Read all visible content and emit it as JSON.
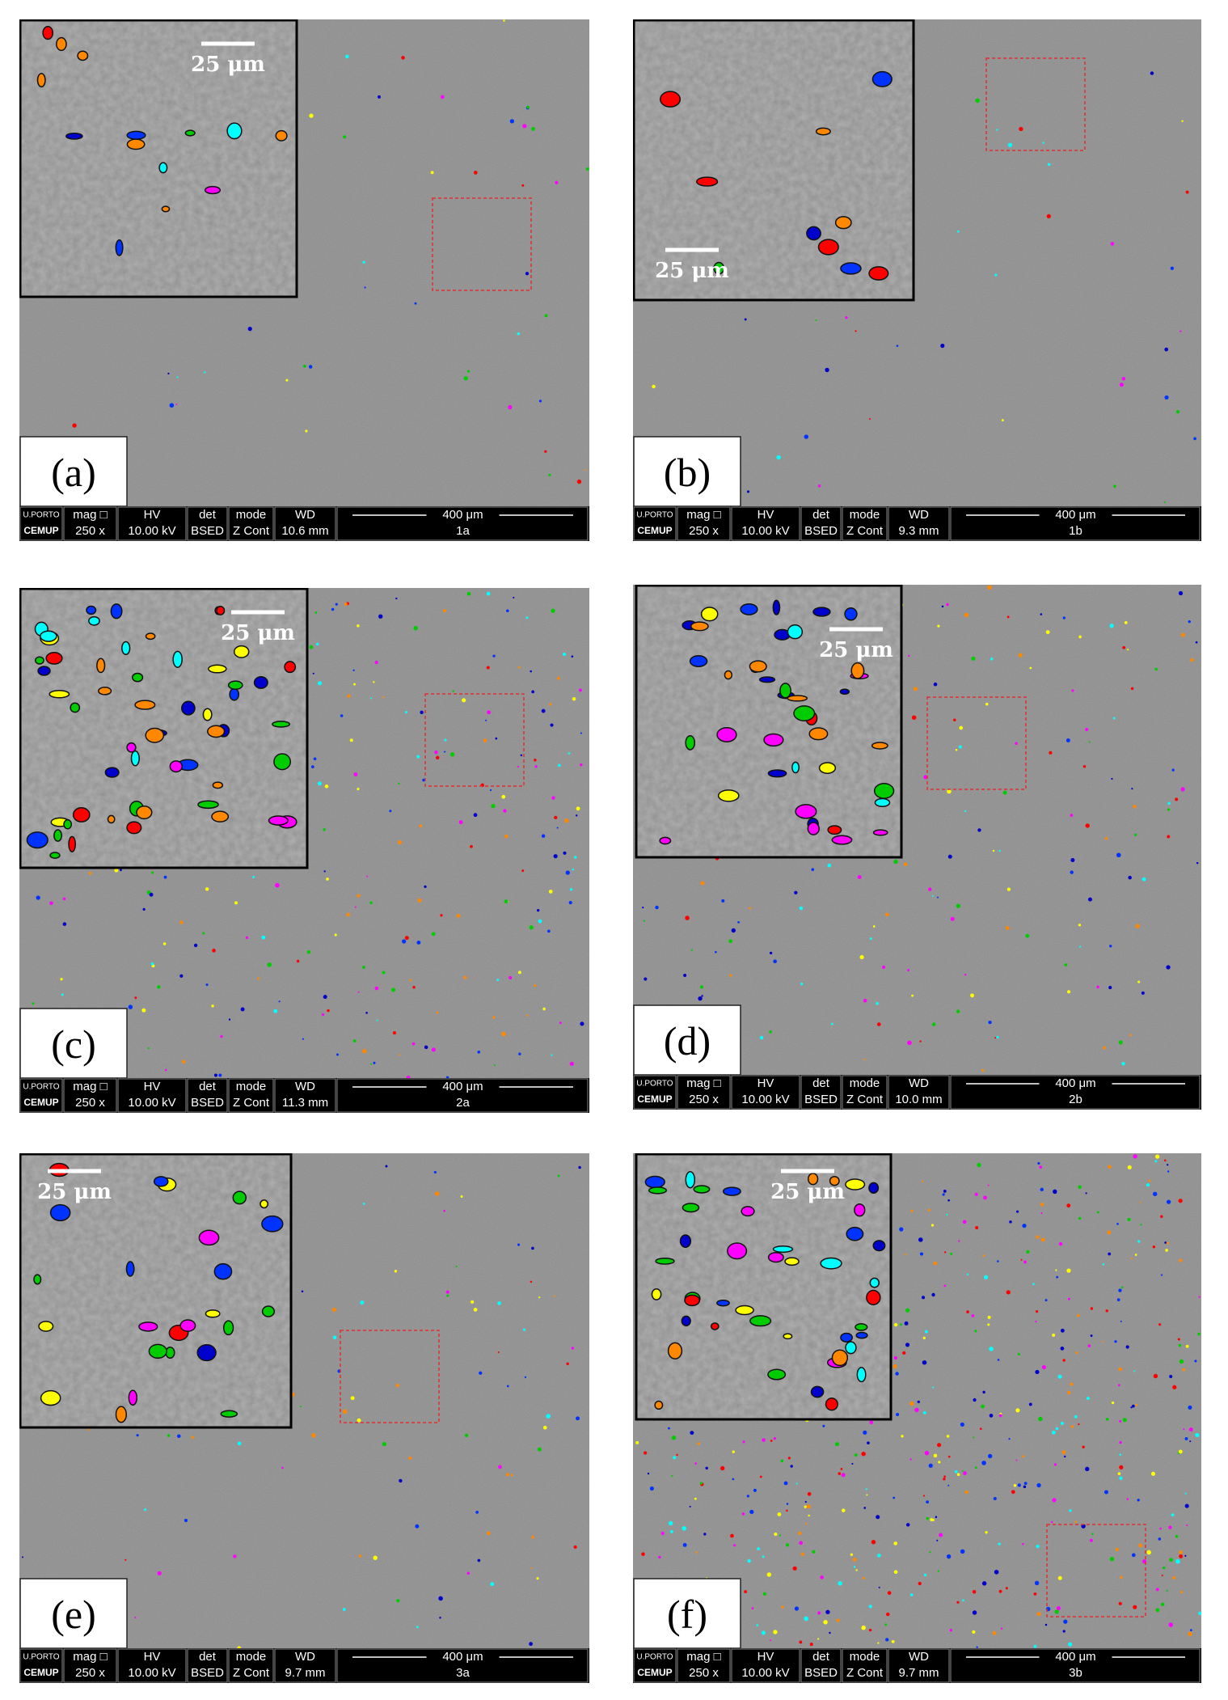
{
  "info_bar_headers": {
    "logo": "U.PORTO",
    "mag": "mag □",
    "hv": "HV",
    "det": "det",
    "mode": "mode",
    "wd": "WD",
    "hfw": "400 μm"
  },
  "panels": [
    {
      "label": "(a)",
      "scale_bar": "25 μm",
      "info": {
        "logo": "CEMUP",
        "mag": "250 x",
        "hv": "10.00 kV",
        "det": "BSED",
        "mode": "Z Cont",
        "wd": "10.6 mm",
        "id": "1a"
      }
    },
    {
      "label": "(b)",
      "scale_bar": "25 μm",
      "info": {
        "logo": "CEMUP",
        "mag": "250 x",
        "hv": "10.00 kV",
        "det": "BSED",
        "mode": "Z Cont",
        "wd": "9.3 mm",
        "id": "1b"
      }
    },
    {
      "label": "(c)",
      "scale_bar": "25 μm",
      "info": {
        "logo": "CEMUP",
        "mag": "250 x",
        "hv": "10.00 kV",
        "det": "BSED",
        "mode": "Z Cont",
        "wd": "11.3 mm",
        "id": "2a"
      }
    },
    {
      "label": "(d)",
      "scale_bar": "25 μm",
      "info": {
        "logo": "CEMUP",
        "mag": "250 x",
        "hv": "10.00 kV",
        "det": "BSED",
        "mode": "Z Cont",
        "wd": "10.0 mm",
        "id": "2b"
      }
    },
    {
      "label": "(e)",
      "scale_bar": "25 μm",
      "info": {
        "logo": "CEMUP",
        "mag": "250 x",
        "hv": "10.00 kV",
        "det": "BSED",
        "mode": "Z Cont",
        "wd": "9.7 mm",
        "id": "3a"
      }
    },
    {
      "label": "(f)",
      "scale_bar": "25 μm",
      "info": {
        "logo": "CEMUP",
        "mag": "250 x",
        "hv": "10.00 kV",
        "det": "BSED",
        "mode": "Z Cont",
        "wd": "9.7 mm",
        "id": "3b"
      }
    }
  ]
}
